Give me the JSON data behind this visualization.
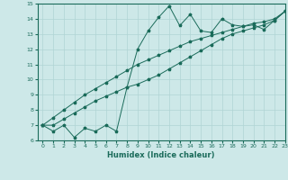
{
  "xlabel": "Humidex (Indice chaleur)",
  "xlim": [
    -0.5,
    23
  ],
  "ylim": [
    6,
    15
  ],
  "xticks": [
    0,
    1,
    2,
    3,
    4,
    5,
    6,
    7,
    8,
    9,
    10,
    11,
    12,
    13,
    14,
    15,
    16,
    17,
    18,
    19,
    20,
    21,
    22,
    23
  ],
  "yticks": [
    6,
    7,
    8,
    9,
    10,
    11,
    12,
    13,
    14,
    15
  ],
  "bg_color": "#cde8e8",
  "line_color": "#1a6b5a",
  "grid_color": "#b0d4d4",
  "lines": [
    {
      "x": [
        0,
        1,
        2,
        3,
        4,
        5,
        6,
        7,
        8,
        9,
        10,
        11,
        12,
        13,
        14,
        15,
        16,
        17,
        18,
        19,
        20,
        21,
        22,
        23
      ],
      "y": [
        7,
        6.6,
        7.0,
        6.2,
        6.8,
        6.6,
        7.0,
        6.6,
        9.5,
        12.0,
        13.2,
        14.1,
        14.85,
        13.55,
        14.3,
        13.2,
        13.1,
        14.0,
        13.6,
        13.5,
        13.6,
        13.3,
        13.9,
        14.5
      ]
    },
    {
      "x": [
        0,
        1,
        2,
        3,
        4,
        5,
        6,
        7,
        8,
        9,
        10,
        11,
        12,
        13,
        14,
        15,
        16,
        17,
        18,
        19,
        20,
        21,
        22,
        23
      ],
      "y": [
        7,
        7.5,
        8.0,
        8.5,
        9.0,
        9.4,
        9.8,
        10.2,
        10.6,
        11.0,
        11.3,
        11.6,
        11.9,
        12.2,
        12.5,
        12.7,
        12.9,
        13.1,
        13.3,
        13.5,
        13.7,
        13.8,
        14.0,
        14.5
      ]
    },
    {
      "x": [
        0,
        1,
        2,
        3,
        4,
        5,
        6,
        7,
        8,
        9,
        10,
        11,
        12,
        13,
        14,
        15,
        16,
        17,
        18,
        19,
        20,
        21,
        22,
        23
      ],
      "y": [
        7,
        7.0,
        7.4,
        7.8,
        8.2,
        8.6,
        8.9,
        9.2,
        9.5,
        9.7,
        10.0,
        10.3,
        10.7,
        11.1,
        11.5,
        11.9,
        12.3,
        12.7,
        13.0,
        13.2,
        13.4,
        13.6,
        13.9,
        14.5
      ]
    }
  ]
}
